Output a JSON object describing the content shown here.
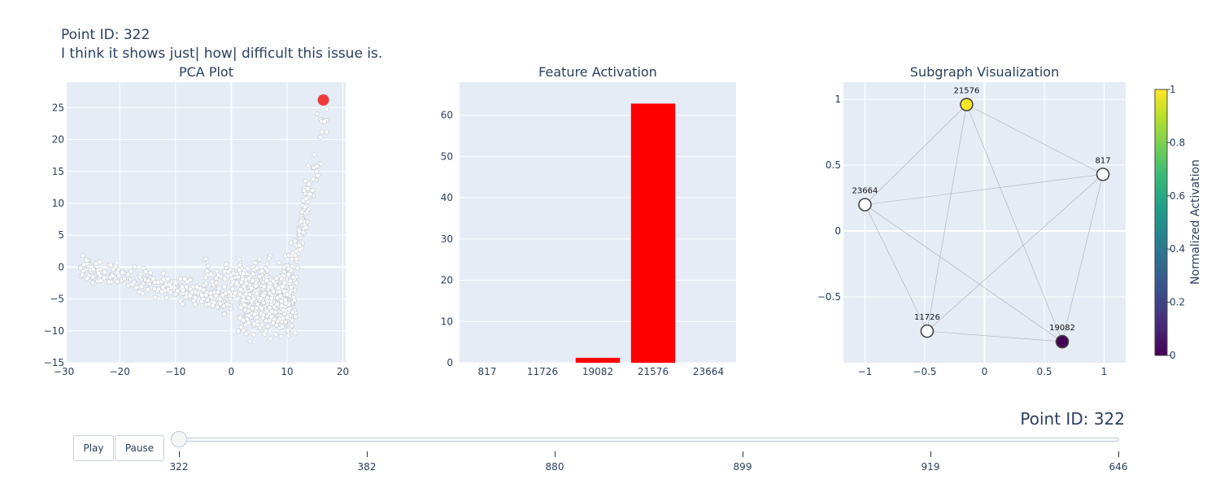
{
  "header": {
    "line1": "Point ID: 322",
    "line2": "I think it shows just| how| difficult this issue is."
  },
  "colors": {
    "plot_bg": "#e5ecf6",
    "grid": "#ffffff",
    "text": "#2a3f5f",
    "highlight": "#ef3b3b",
    "bar": "#ff0000",
    "edge": "#a9adb8"
  },
  "chart_data": [
    {
      "type": "scatter",
      "title": "PCA Plot",
      "xlabel": "",
      "ylabel": "",
      "xlim": [
        -29.5,
        20.5
      ],
      "ylim": [
        -15,
        29
      ],
      "xticks": [
        -30,
        -20,
        -10,
        0,
        10,
        20
      ],
      "yticks": [
        -15,
        -10,
        -5,
        0,
        5,
        10,
        15,
        20,
        25
      ],
      "grid": true,
      "highlight_point": {
        "x": 16.5,
        "y": 26.2,
        "color": "#ef3b3b"
      },
      "cloud_points_approx": 900,
      "cloud_color": "#ffffff"
    },
    {
      "type": "bar",
      "title": "Feature Activation",
      "categories": [
        "817",
        "11726",
        "19082",
        "21576",
        "23664"
      ],
      "values": [
        0,
        0,
        1.2,
        62.8,
        0
      ],
      "ylim": [
        0,
        68
      ],
      "yticks": [
        0,
        10,
        20,
        30,
        40,
        50,
        60
      ],
      "color": "#ff0000",
      "grid": true
    },
    {
      "type": "network",
      "title": "Subgraph Visualization",
      "xlim": [
        -1.18,
        1.18
      ],
      "ylim": [
        -1.0,
        1.13
      ],
      "xticks": [
        {
          "v": -1,
          "t": "−1"
        },
        {
          "v": -0.5,
          "t": "−0.5"
        },
        {
          "v": 0,
          "t": "0"
        },
        {
          "v": 0.5,
          "t": "0.5"
        },
        {
          "v": 1,
          "t": "1"
        }
      ],
      "yticks": [
        {
          "v": -0.5,
          "t": "−0.5"
        },
        {
          "v": 0,
          "t": "0"
        },
        {
          "v": 0.5,
          "t": "0.5"
        },
        {
          "v": 1,
          "t": "1"
        }
      ],
      "nodes": [
        {
          "id": "21576",
          "x": -0.15,
          "y": 0.96,
          "activation": 1.0
        },
        {
          "id": "817",
          "x": 0.99,
          "y": 0.43,
          "activation": null
        },
        {
          "id": "23664",
          "x": -1.0,
          "y": 0.2,
          "activation": null
        },
        {
          "id": "11726",
          "x": -0.48,
          "y": -0.76,
          "activation": null
        },
        {
          "id": "19082",
          "x": 0.65,
          "y": -0.84,
          "activation": 0.0
        }
      ],
      "edges": [
        [
          "21576",
          "817"
        ],
        [
          "21576",
          "23664"
        ],
        [
          "21576",
          "11726"
        ],
        [
          "21576",
          "19082"
        ],
        [
          "817",
          "23664"
        ],
        [
          "817",
          "11726"
        ],
        [
          "817",
          "19082"
        ],
        [
          "23664",
          "19082"
        ],
        [
          "23664",
          "11726"
        ],
        [
          "11726",
          "19082"
        ]
      ],
      "colorbar": {
        "title": "Normalized Activation",
        "range": [
          0,
          1
        ],
        "ticks": [
          "0",
          "0.2",
          "0.4",
          "0.6",
          "0.8",
          "1"
        ],
        "colorscale": [
          "#440154",
          "#482878",
          "#3e4989",
          "#31688e",
          "#26828e",
          "#1f9e89",
          "#35b779",
          "#6ece58",
          "#b5de2b",
          "#fde725"
        ]
      }
    }
  ],
  "controls": {
    "play_label": "Play",
    "pause_label": "Pause",
    "slider_current": "Point ID: 322",
    "slider_steps": [
      "322",
      "382",
      "880",
      "899",
      "919",
      "646"
    ],
    "active_step": 0
  }
}
